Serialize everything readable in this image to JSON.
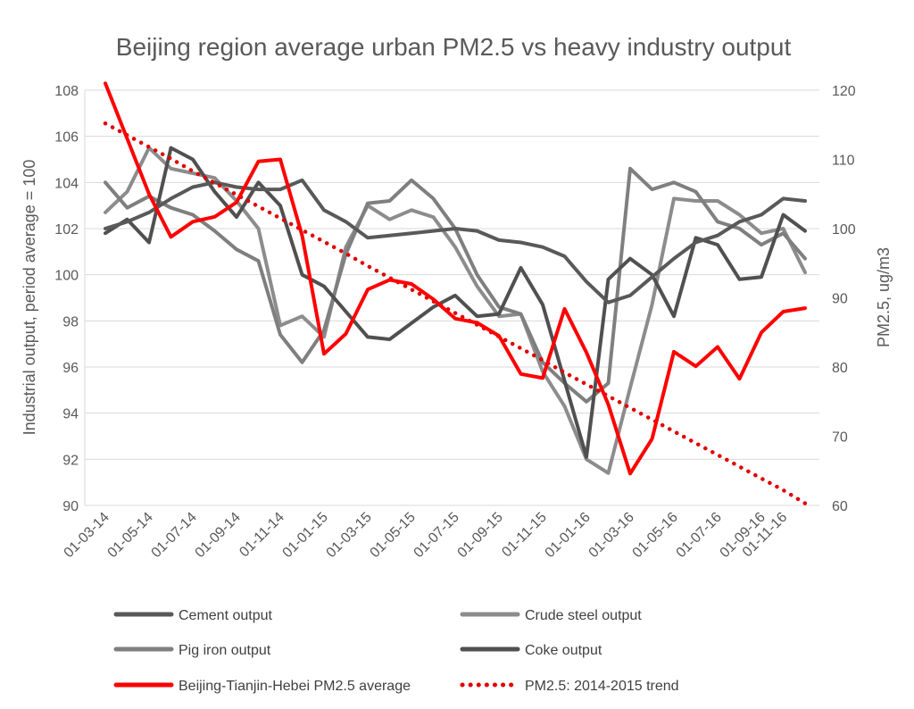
{
  "chart_data": {
    "type": "line",
    "title": "Beijing region average urban PM2.5 vs heavy industry output",
    "ylabel_left": "Industrial output, period average = 100",
    "ylabel_right": "PM2.5, ug/m3",
    "ylim_left": [
      90,
      108
    ],
    "ylim_right": [
      60,
      120
    ],
    "yticks_left": [
      90,
      92,
      94,
      96,
      98,
      100,
      102,
      104,
      106,
      108
    ],
    "yticks_right": [
      60,
      70,
      80,
      90,
      100,
      110,
      120
    ],
    "x_tick_labels": [
      "01-03-14",
      "01-05-14",
      "01-07-14",
      "01-09-14",
      "01-11-14",
      "01-01-15",
      "01-03-15",
      "01-05-15",
      "01-07-15",
      "01-09-15",
      "01-11-15",
      "01-01-16",
      "01-03-16",
      "01-05-16",
      "01-07-16",
      "01-09-16",
      "01-11-16"
    ],
    "x_tick_index": [
      0,
      2,
      4,
      6,
      8,
      10,
      12,
      14,
      16,
      18,
      20,
      22,
      24,
      26,
      28,
      30,
      31
    ],
    "grid": true,
    "legend_position": "bottom",
    "series": [
      {
        "name": "Cement output",
        "axis": "left",
        "color": "#595959",
        "style": "solid",
        "values": [
          102.0,
          102.3,
          102.7,
          103.3,
          103.8,
          104.0,
          103.8,
          103.7,
          103.7,
          104.1,
          102.8,
          102.3,
          101.6,
          101.7,
          101.8,
          101.9,
          102.0,
          101.9,
          101.5,
          101.4,
          101.2,
          100.8,
          99.7,
          98.8,
          99.1,
          99.9,
          100.7,
          101.4,
          101.7,
          102.3,
          102.6,
          103.3,
          103.2
        ]
      },
      {
        "name": "Crude steel output",
        "axis": "left",
        "color": "#8c8c8c",
        "style": "solid",
        "values": [
          102.7,
          103.6,
          105.5,
          104.6,
          104.4,
          104.2,
          103.2,
          102.0,
          97.8,
          98.2,
          97.3,
          101.2,
          103.0,
          102.4,
          102.8,
          102.5,
          101.2,
          99.5,
          98.2,
          98.3,
          95.8,
          94.3,
          92.0,
          91.4,
          95.1,
          98.7,
          103.3,
          103.2,
          103.2,
          102.6,
          101.8,
          102.0,
          100.1
        ]
      },
      {
        "name": "Pig iron output",
        "axis": "left",
        "color": "#7f7f7f",
        "style": "solid",
        "values": [
          104.0,
          102.9,
          103.4,
          102.9,
          102.6,
          101.9,
          101.1,
          100.6,
          97.4,
          96.2,
          97.6,
          100.9,
          103.1,
          103.2,
          104.1,
          103.3,
          102.0,
          100.0,
          98.6,
          98.3,
          96.2,
          95.3,
          94.5,
          95.3,
          104.6,
          103.7,
          104.0,
          103.6,
          102.3,
          102.0,
          101.3,
          101.8,
          100.7
        ]
      },
      {
        "name": "Coke output",
        "axis": "left",
        "color": "#505050",
        "style": "solid",
        "values": [
          101.8,
          102.4,
          101.4,
          105.5,
          105.0,
          103.6,
          102.5,
          104.0,
          103.0,
          100.0,
          99.5,
          98.4,
          97.3,
          97.2,
          97.9,
          98.6,
          99.1,
          98.2,
          98.3,
          100.3,
          98.7,
          95.4,
          92.1,
          99.8,
          100.7,
          100.0,
          98.2,
          101.6,
          101.3,
          99.8,
          99.9,
          102.6,
          101.9
        ]
      },
      {
        "name": "Beijing-Tianjin-Hebei PM2.5 average",
        "axis": "right",
        "color": "#ff0000",
        "style": "solid",
        "values": [
          121.0,
          113.0,
          105.0,
          98.8,
          101.0,
          101.7,
          103.8,
          109.7,
          110.0,
          99.0,
          81.9,
          84.8,
          91.2,
          92.6,
          92.0,
          89.8,
          87.0,
          86.4,
          84.5,
          79.0,
          78.4,
          88.4,
          82.1,
          74.6,
          64.6,
          69.6,
          82.2,
          80.1,
          82.9,
          78.3,
          85.0,
          88.0,
          88.5
        ]
      },
      {
        "name": "PM2.5: 2014-2015 trend",
        "axis": "right",
        "color": "#e00000",
        "style": "dotted",
        "values": [
          115.2,
          113.5,
          111.8,
          110.1,
          108.3,
          106.6,
          104.9,
          103.2,
          101.5,
          99.8,
          98.1,
          96.4,
          94.6,
          92.9,
          91.2,
          89.5,
          87.8,
          86.1,
          84.4,
          82.7,
          81.0,
          79.2,
          77.5,
          75.8,
          74.1,
          72.4,
          70.7,
          69.0,
          67.3,
          65.6,
          63.9,
          62.2,
          60.3
        ]
      }
    ]
  }
}
